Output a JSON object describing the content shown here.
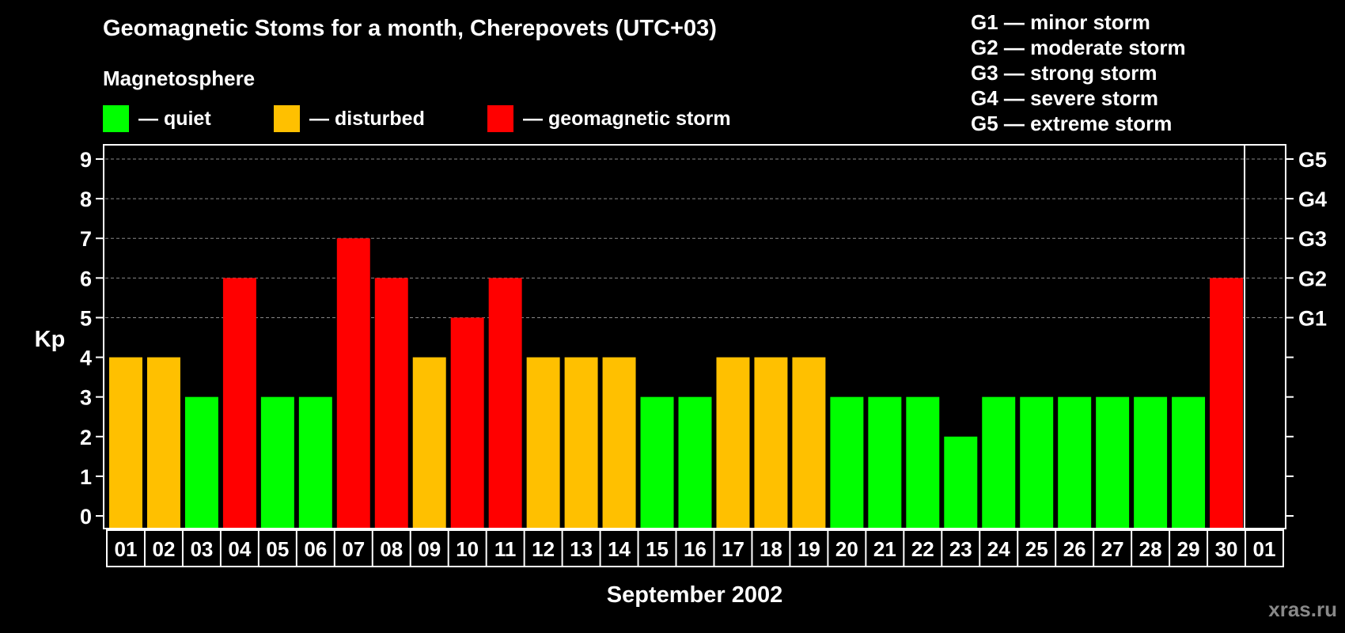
{
  "title": "Geomagnetic Stoms for a month, Cherepovets (UTC+03)",
  "subtitle": "Magnetosphere",
  "legend": [
    {
      "label": "— quiet",
      "color": "#00ff00"
    },
    {
      "label": "— disturbed",
      "color": "#ffc000"
    },
    {
      "label": "— geomagnetic storm",
      "color": "#ff0000"
    }
  ],
  "storm_scale": [
    "G1 — minor storm",
    "G2 — moderate storm",
    "G3 — strong storm",
    "G4 — severe storm",
    "G5 — extreme storm"
  ],
  "watermark": "xras.ru",
  "chart_data": {
    "type": "bar",
    "title": "Geomagnetic Stoms for a month, Cherepovets (UTC+03)",
    "xlabel": "September 2002",
    "ylabel": "Kp",
    "ylim": [
      0,
      9
    ],
    "grid": true,
    "categories": [
      "01",
      "02",
      "03",
      "04",
      "05",
      "06",
      "07",
      "08",
      "09",
      "10",
      "11",
      "12",
      "13",
      "14",
      "15",
      "16",
      "17",
      "18",
      "19",
      "20",
      "21",
      "22",
      "23",
      "24",
      "25",
      "26",
      "27",
      "28",
      "29",
      "30",
      "01"
    ],
    "values": [
      4,
      4,
      3,
      6,
      3,
      3,
      7,
      6,
      4,
      5,
      6,
      4,
      4,
      4,
      3,
      3,
      4,
      4,
      4,
      3,
      3,
      3,
      2,
      3,
      3,
      3,
      3,
      3,
      3,
      6,
      null
    ],
    "status": [
      "disturbed",
      "disturbed",
      "quiet",
      "storm",
      "quiet",
      "quiet",
      "storm",
      "storm",
      "disturbed",
      "storm",
      "storm",
      "disturbed",
      "disturbed",
      "disturbed",
      "quiet",
      "quiet",
      "disturbed",
      "disturbed",
      "disturbed",
      "quiet",
      "quiet",
      "quiet",
      "quiet",
      "quiet",
      "quiet",
      "quiet",
      "quiet",
      "quiet",
      "quiet",
      "storm",
      null
    ],
    "status_colors": {
      "quiet": "#00ff00",
      "disturbed": "#ffc000",
      "storm": "#ff0000"
    },
    "y_ticks": [
      0,
      1,
      2,
      3,
      4,
      5,
      6,
      7,
      8,
      9
    ],
    "right_axis_labels": [
      {
        "y": 5,
        "label": "G1"
      },
      {
        "y": 6,
        "label": "G2"
      },
      {
        "y": 7,
        "label": "G3"
      },
      {
        "y": 8,
        "label": "G4"
      },
      {
        "y": 9,
        "label": "G5"
      }
    ]
  }
}
